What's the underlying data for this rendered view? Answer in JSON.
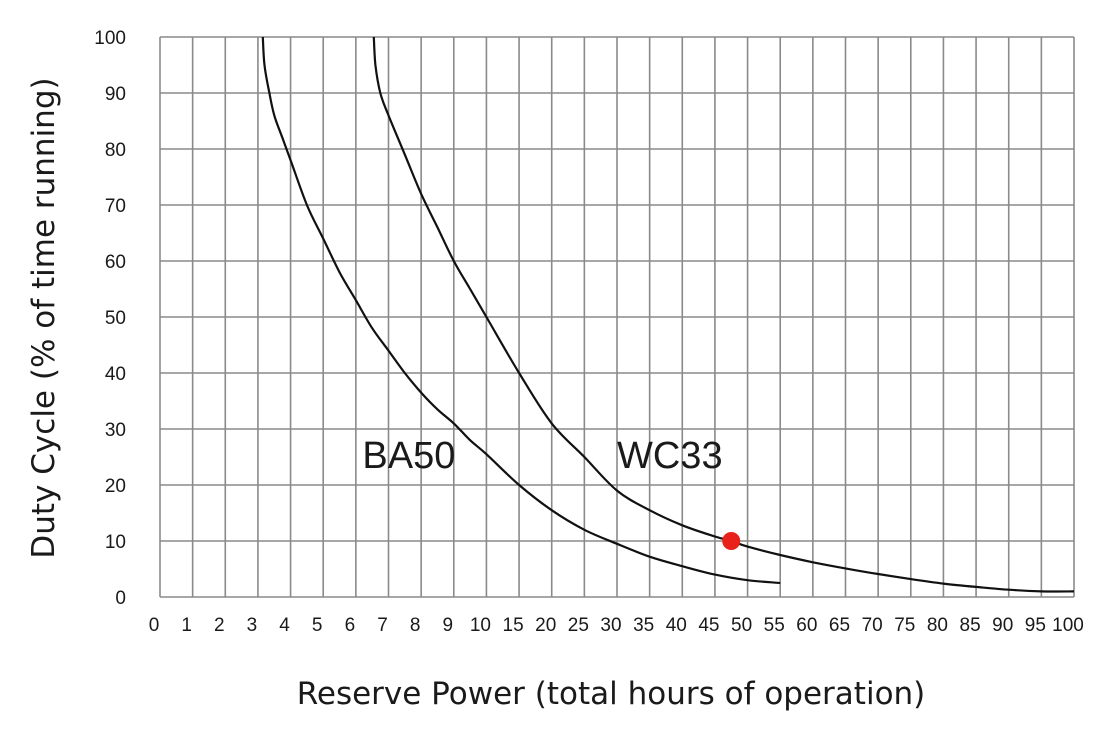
{
  "chart_data": {
    "type": "line",
    "xlabel": "Reserve Power (total hours of operation)",
    "ylabel": "Duty Cycle (% of time running)",
    "ylim": [
      0,
      100
    ],
    "y_ticks": [
      "0",
      "10",
      "20",
      "30",
      "40",
      "50",
      "60",
      "70",
      "80",
      "90",
      "100"
    ],
    "x_ticks": [
      "0",
      "1",
      "2",
      "3",
      "4",
      "5",
      "6",
      "7",
      "8",
      "9",
      "10",
      "15",
      "20",
      "25",
      "30",
      "35",
      "40",
      "45",
      "50",
      "55",
      "60",
      "65",
      "70",
      "75",
      "80",
      "85",
      "90",
      "95",
      "100"
    ],
    "x_scale": "piecewise: unit steps 0–10, then steps of 5 from 10–100 (each tick equally spaced)",
    "grid": true,
    "series": [
      {
        "name": "BA50",
        "x": [
          3.15,
          3.2,
          3.35,
          3.5,
          3.75,
          4,
          4.5,
          5,
          5.5,
          6,
          6.5,
          7,
          7.5,
          8,
          8.5,
          9,
          9.5,
          10,
          15,
          20,
          25,
          30,
          35,
          40,
          45,
          50,
          55
        ],
        "y": [
          100,
          95,
          90,
          86,
          82,
          78,
          70,
          64,
          58,
          53,
          48,
          44,
          40,
          36.5,
          33.5,
          31,
          28,
          25.5,
          20,
          15.5,
          12,
          9.5,
          7.2,
          5.5,
          4,
          3,
          2.5
        ]
      },
      {
        "name": "WC33",
        "x": [
          6.55,
          6.6,
          6.75,
          7,
          7.5,
          8,
          8.5,
          9,
          9.5,
          10,
          15,
          20,
          25,
          30,
          35,
          40,
          45,
          47.5,
          50,
          55,
          60,
          65,
          70,
          75,
          80,
          85,
          90,
          95,
          100
        ],
        "y": [
          100,
          95,
          90,
          86,
          79,
          72,
          66,
          60,
          55,
          50,
          40,
          31,
          25,
          19,
          15.5,
          12.8,
          10.8,
          10,
          9,
          7.5,
          6.2,
          5.1,
          4.1,
          3.2,
          2.4,
          1.8,
          1.3,
          1.0,
          1.0
        ]
      }
    ],
    "highlight_point": {
      "x": 47.5,
      "y": 10,
      "color": "#e8211b"
    },
    "annotations": [
      {
        "text": "BA50",
        "x": 6.2,
        "y": 23
      },
      {
        "text": "WC33",
        "x": 30,
        "y": 23
      }
    ]
  }
}
